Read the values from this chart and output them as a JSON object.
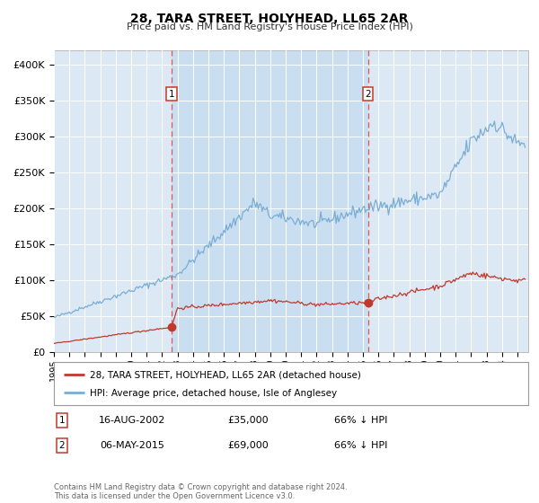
{
  "title": "28, TARA STREET, HOLYHEAD, LL65 2AR",
  "subtitle": "Price paid vs. HM Land Registry's House Price Index (HPI)",
  "legend_line1": "28, TARA STREET, HOLYHEAD, LL65 2AR (detached house)",
  "legend_line2": "HPI: Average price, detached house, Isle of Anglesey",
  "transaction1_date": "16-AUG-2002",
  "transaction1_price": "£35,000",
  "transaction1_hpi": "66% ↓ HPI",
  "transaction2_date": "06-MAY-2015",
  "transaction2_price": "£69,000",
  "transaction2_hpi": "66% ↓ HPI",
  "footer": "Contains HM Land Registry data © Crown copyright and database right 2024.\nThis data is licensed under the Open Government Licence v3.0.",
  "background_color": "#ffffff",
  "plot_bg_color": "#dce9f5",
  "grid_color": "#ffffff",
  "hpi_line_color": "#7aadd4",
  "price_line_color": "#c0392b",
  "vline_color": "#e05555",
  "marker_color": "#c0392b",
  "ylim": [
    0,
    420000
  ],
  "yticks": [
    0,
    50000,
    100000,
    150000,
    200000,
    250000,
    300000,
    350000,
    400000
  ],
  "ytick_labels": [
    "£0",
    "£50K",
    "£100K",
    "£150K",
    "£200K",
    "£250K",
    "£300K",
    "£350K",
    "£400K"
  ],
  "transaction1_x": 2002.62,
  "transaction1_y": 35000,
  "transaction2_x": 2015.34,
  "transaction2_y": 69000,
  "shade_start": 2002.62,
  "shade_end": 2015.34,
  "xmin": 1995.0,
  "xmax": 2025.7
}
